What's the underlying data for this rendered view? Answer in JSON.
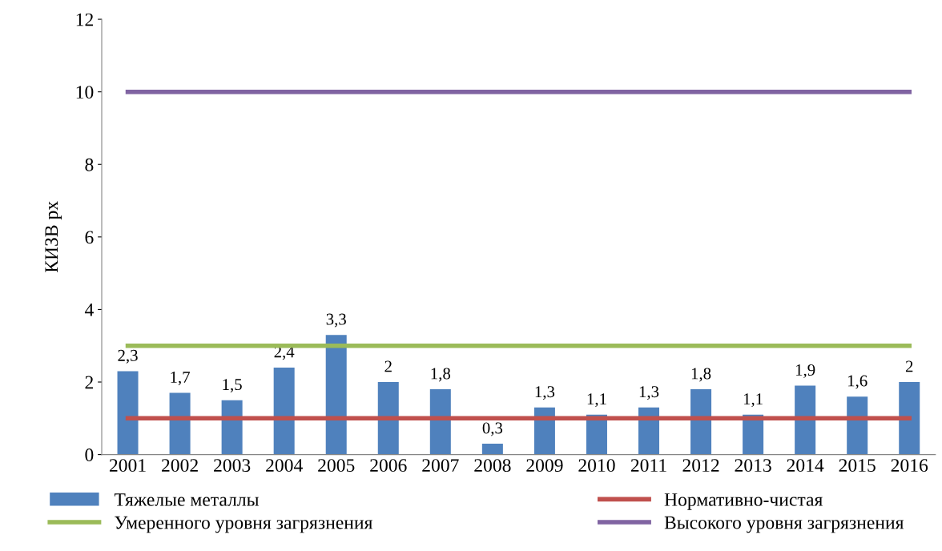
{
  "chart_data": {
    "type": "bar",
    "ylabel": "КИЗВ рх",
    "categories": [
      "2001",
      "2002",
      "2003",
      "2004",
      "2005",
      "2006",
      "2007",
      "2008",
      "2009",
      "2010",
      "2011",
      "2012",
      "2013",
      "2014",
      "2015",
      "2016"
    ],
    "series": [
      {
        "name": "Тяжелые металлы",
        "color": "#4f81bd",
        "values": [
          2.3,
          1.7,
          1.5,
          2.4,
          3.3,
          2,
          1.8,
          0.3,
          1.3,
          1.1,
          1.3,
          1.8,
          1.1,
          1.9,
          1.6,
          2
        ],
        "value_labels": [
          "2,3",
          "1,7",
          "1,5",
          "2,4",
          "3,3",
          "2",
          "1,8",
          "0,3",
          "1,3",
          "1,1",
          "1,3",
          "1,8",
          "1,1",
          "1,9",
          "1,6",
          "2"
        ]
      },
      {
        "name": "Нормативно-чистая",
        "type": "line",
        "color": "#c0504d",
        "values": [
          1,
          1,
          1,
          1,
          1,
          1,
          1,
          1,
          1,
          1,
          1,
          1,
          1,
          1,
          1,
          1
        ]
      },
      {
        "name": "Умеренного уровня загрязнения",
        "type": "line",
        "color": "#9bbb59",
        "values": [
          3,
          3,
          3,
          3,
          3,
          3,
          3,
          3,
          3,
          3,
          3,
          3,
          3,
          3,
          3,
          3
        ]
      },
      {
        "name": "Высокого уровня загрязнения",
        "type": "line",
        "color": "#8064a2",
        "values": [
          10,
          10,
          10,
          10,
          10,
          10,
          10,
          10,
          10,
          10,
          10,
          10,
          10,
          10,
          10,
          10
        ]
      }
    ],
    "ylim": [
      0,
      12
    ],
    "yticks": [
      0,
      2,
      4,
      6,
      8,
      10,
      12
    ],
    "grid": false,
    "legend": "bottom",
    "marker": "none",
    "line_style": "solid"
  }
}
